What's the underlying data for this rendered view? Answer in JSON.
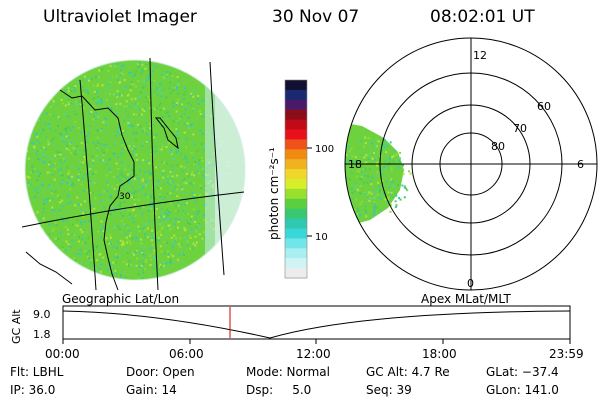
{
  "header": {
    "instrument": "Ultraviolet Imager",
    "date": "30 Nov 07",
    "time": "08:02:01 UT"
  },
  "geo_panel": {
    "caption": "Geographic Lat/Lon",
    "lat_label": "30"
  },
  "colorbar": {
    "title": "photon cm⁻²s⁻¹",
    "tick_labels": [
      "100",
      "10"
    ],
    "colors": [
      "#121030",
      "#1a2a70",
      "#4a1a6a",
      "#8a0d18",
      "#c00a18",
      "#e8101c",
      "#f0501a",
      "#f08a10",
      "#f0b220",
      "#f0d82a",
      "#d8ee2a",
      "#98e02c",
      "#5ad040",
      "#38c870",
      "#2fc8b0",
      "#38d8d8",
      "#70e6e8",
      "#a9eef0",
      "#d0f4f6",
      "#ececec"
    ]
  },
  "polar_panel": {
    "caption": "Apex MLat/MLT",
    "mlt_labels": [
      "12",
      "18",
      "6",
      "0"
    ],
    "mlat_labels": [
      "60",
      "70",
      "80"
    ]
  },
  "alt_strip": {
    "ylabel": "GC Alt",
    "y_ticks": [
      "9.0",
      "1.8"
    ],
    "x_ticks": [
      "00:00",
      "06:00",
      "12:00",
      "18:00",
      "23:59"
    ],
    "marker_color": "#d00000"
  },
  "footer": {
    "row1": {
      "filter": "Flt: LBHL",
      "door": "Door: Open",
      "mode": "Mode: Normal",
      "gc_alt": "GC Alt: 4.7 Re",
      "glat": "GLat: −37.4"
    },
    "row2": {
      "ip": "IP: 36.0",
      "gain": "Gain: 14",
      "dsp": "Dsp:     5.0",
      "seq": "Seq: 39",
      "glon": "GLon: 141.0"
    }
  }
}
